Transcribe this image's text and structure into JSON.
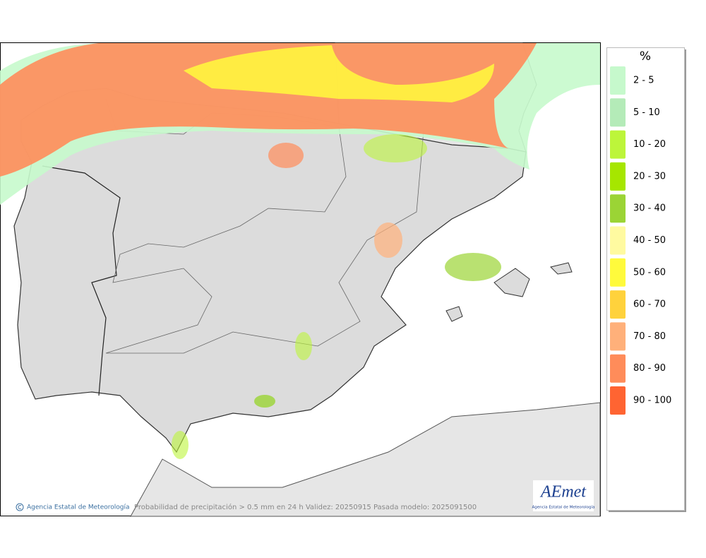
{
  "legend": {
    "title": "%",
    "items": [
      {
        "label": "2 - 5",
        "color": "#c6f9cc"
      },
      {
        "label": "5 - 10",
        "color": "#b4ebb8"
      },
      {
        "label": "10 - 20",
        "color": "#bdf53a"
      },
      {
        "label": "20 - 30",
        "color": "#a6e600"
      },
      {
        "label": "30 - 40",
        "color": "#9bd435"
      },
      {
        "label": "40 - 50",
        "color": "#fffaa0"
      },
      {
        "label": "50 - 60",
        "color": "#fffa3c"
      },
      {
        "label": "60 - 70",
        "color": "#ffd23c"
      },
      {
        "label": "70 - 80",
        "color": "#ffb07a"
      },
      {
        "label": "80 - 90",
        "color": "#ff8c5a"
      },
      {
        "label": "90 - 100",
        "color": "#ff6432"
      }
    ]
  },
  "footer": {
    "credit": "Agencia Estatal de Meteorología",
    "caption": "Probabilidad de precipitación > 0.5 mm en 24 h Validez: 20250915 Pasada modelo: 2025091500"
  },
  "logo": {
    "name": "AEmet",
    "subtitle": "Agencia Estatal de Meteorología"
  }
}
